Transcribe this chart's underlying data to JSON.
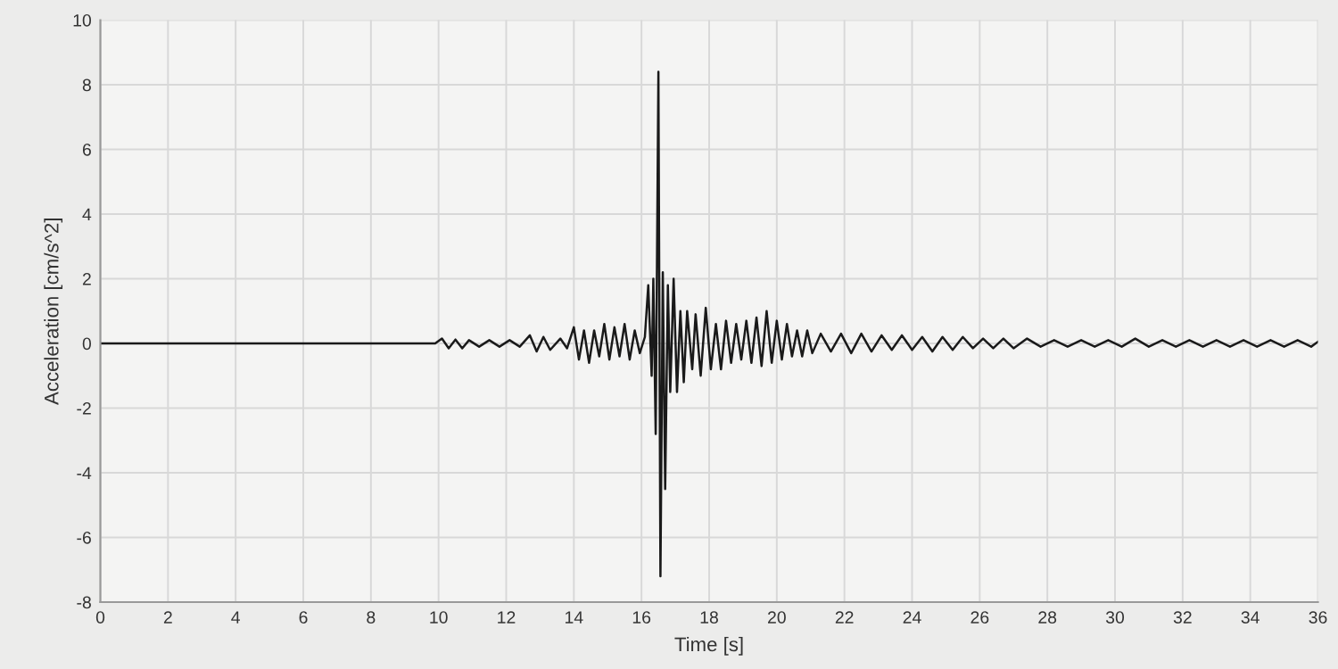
{
  "chart_data": {
    "type": "line",
    "xlabel": "Time [s]",
    "ylabel": "Acceleration [cm/s^2]",
    "x": [
      0,
      2,
      4,
      6,
      8,
      9.9,
      10.1,
      10.3,
      10.5,
      10.7,
      10.9,
      11.2,
      11.5,
      11.8,
      12.1,
      12.4,
      12.7,
      12.9,
      13.1,
      13.3,
      13.6,
      13.8,
      14.0,
      14.15,
      14.3,
      14.45,
      14.6,
      14.75,
      14.9,
      15.05,
      15.2,
      15.35,
      15.5,
      15.65,
      15.8,
      15.95,
      16.1,
      16.2,
      16.3,
      16.35,
      16.42,
      16.5,
      16.56,
      16.63,
      16.7,
      16.78,
      16.85,
      16.95,
      17.05,
      17.15,
      17.25,
      17.35,
      17.5,
      17.6,
      17.75,
      17.9,
      18.05,
      18.2,
      18.35,
      18.5,
      18.65,
      18.8,
      18.95,
      19.1,
      19.25,
      19.4,
      19.55,
      19.7,
      19.85,
      20.0,
      20.15,
      20.3,
      20.45,
      20.6,
      20.75,
      20.9,
      21.05,
      21.3,
      21.6,
      21.9,
      22.2,
      22.5,
      22.8,
      23.1,
      23.4,
      23.7,
      24.0,
      24.3,
      24.6,
      24.9,
      25.2,
      25.5,
      25.8,
      26.1,
      26.4,
      26.7,
      27.0,
      27.4,
      27.8,
      28.2,
      28.6,
      29.0,
      29.4,
      29.8,
      30.2,
      30.6,
      31.0,
      31.4,
      31.8,
      32.2,
      32.6,
      33.0,
      33.4,
      33.8,
      34.2,
      34.6,
      35.0,
      35.4,
      35.8,
      36.0
    ],
    "series": [
      {
        "color": "#1a1a1a",
        "values": [
          0,
          0,
          0,
          0,
          0,
          0,
          0.15,
          -0.15,
          0.12,
          -0.15,
          0.1,
          -0.1,
          0.1,
          -0.1,
          0.1,
          -0.1,
          0.25,
          -0.25,
          0.2,
          -0.2,
          0.15,
          -0.15,
          0.5,
          -0.5,
          0.4,
          -0.6,
          0.4,
          -0.4,
          0.6,
          -0.5,
          0.5,
          -0.4,
          0.6,
          -0.5,
          0.4,
          -0.3,
          0.2,
          1.8,
          -1.0,
          2.0,
          -2.8,
          8.4,
          -7.2,
          2.2,
          -4.5,
          1.8,
          -1.5,
          2.0,
          -1.5,
          1.0,
          -1.2,
          1.0,
          -0.8,
          0.9,
          -1.0,
          1.1,
          -0.8,
          0.6,
          -0.8,
          0.7,
          -0.6,
          0.6,
          -0.5,
          0.7,
          -0.6,
          0.8,
          -0.7,
          1.0,
          -0.6,
          0.7,
          -0.5,
          0.6,
          -0.4,
          0.4,
          -0.4,
          0.4,
          -0.3,
          0.3,
          -0.25,
          0.3,
          -0.3,
          0.3,
          -0.25,
          0.25,
          -0.2,
          0.25,
          -0.2,
          0.2,
          -0.25,
          0.2,
          -0.2,
          0.2,
          -0.15,
          0.15,
          -0.15,
          0.15,
          -0.15,
          0.15,
          -0.1,
          0.1,
          -0.1,
          0.1,
          -0.1,
          0.1,
          -0.1,
          0.15,
          -0.1,
          0.1,
          -0.1,
          0.1,
          -0.1,
          0.1,
          -0.1,
          0.1,
          -0.1,
          0.1,
          -0.1,
          0.1,
          -0.1,
          0.05
        ]
      }
    ],
    "xlim": [
      0,
      36
    ],
    "ylim": [
      -8,
      10
    ],
    "xticks": [
      0,
      2,
      4,
      6,
      8,
      10,
      12,
      14,
      16,
      18,
      20,
      22,
      24,
      26,
      28,
      30,
      32,
      34,
      36
    ],
    "yticks": [
      -8,
      -6,
      -4,
      -2,
      0,
      2,
      4,
      6,
      8,
      10
    ],
    "grid": true,
    "marker": "none",
    "line_style": "solid"
  }
}
